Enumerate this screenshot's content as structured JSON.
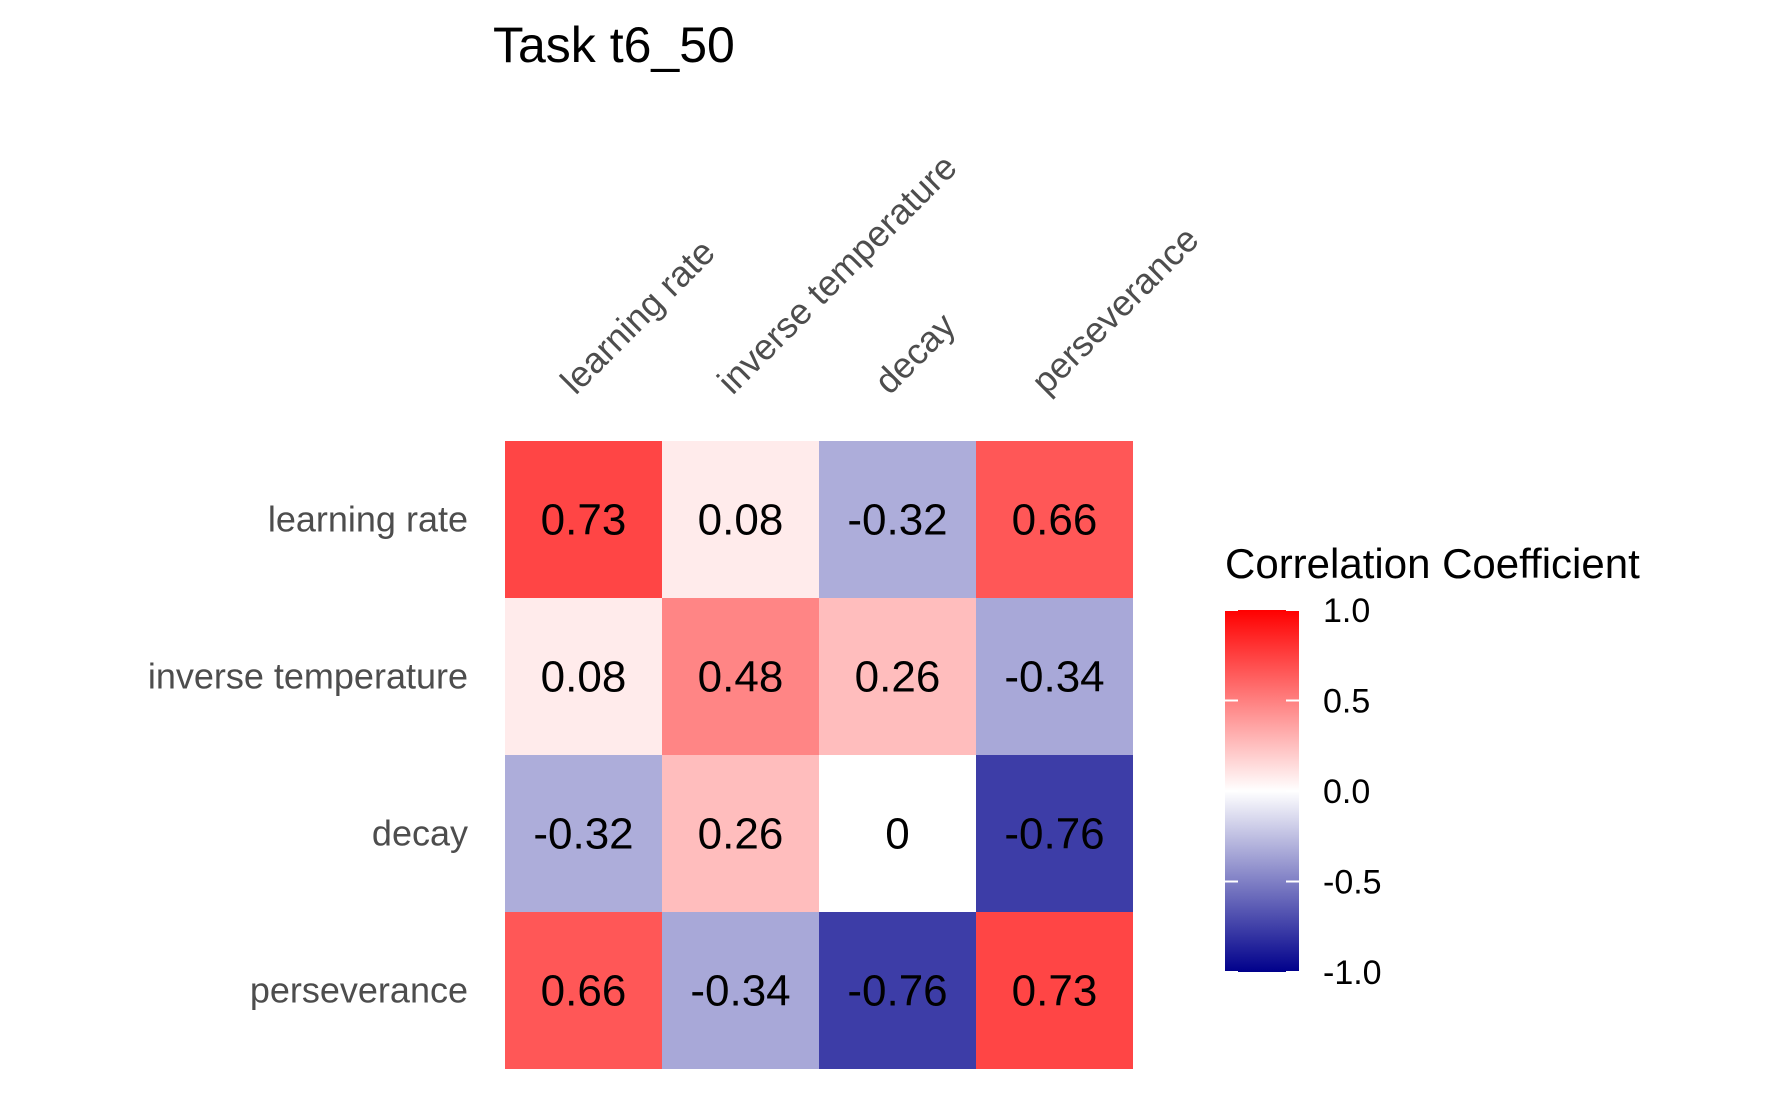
{
  "chart_data": {
    "type": "heatmap",
    "title": "Task t6_50",
    "variables": [
      "learning rate",
      "inverse temperature",
      "decay",
      "perseverance"
    ],
    "values": [
      [
        0.73,
        0.08,
        -0.32,
        0.66
      ],
      [
        0.08,
        0.48,
        0.26,
        -0.34
      ],
      [
        -0.32,
        0.26,
        0,
        -0.76
      ],
      [
        0.66,
        -0.34,
        -0.76,
        0.73
      ]
    ],
    "cell_labels": [
      [
        "0.73",
        "0.08",
        "-0.32",
        "0.66"
      ],
      [
        "0.08",
        "0.48",
        "0.26",
        "-0.34"
      ],
      [
        "-0.32",
        "0.26",
        "0",
        "-0.76"
      ],
      [
        "0.66",
        "-0.34",
        "-0.76",
        "0.73"
      ]
    ],
    "x_axis_position": "top",
    "grid": false,
    "legend": {
      "title": "Correlation Coefficient",
      "placement": "right",
      "range": [
        -1,
        1
      ],
      "ticks": [
        1.0,
        0.5,
        0.0,
        -0.5,
        -1.0
      ],
      "tick_labels": [
        "1.0",
        "0.5",
        "0.0",
        "-0.5",
        "-1.0"
      ],
      "colors": {
        "low": "#00008B",
        "mid": "#FFFFFF",
        "high": "#FF0000"
      }
    }
  }
}
